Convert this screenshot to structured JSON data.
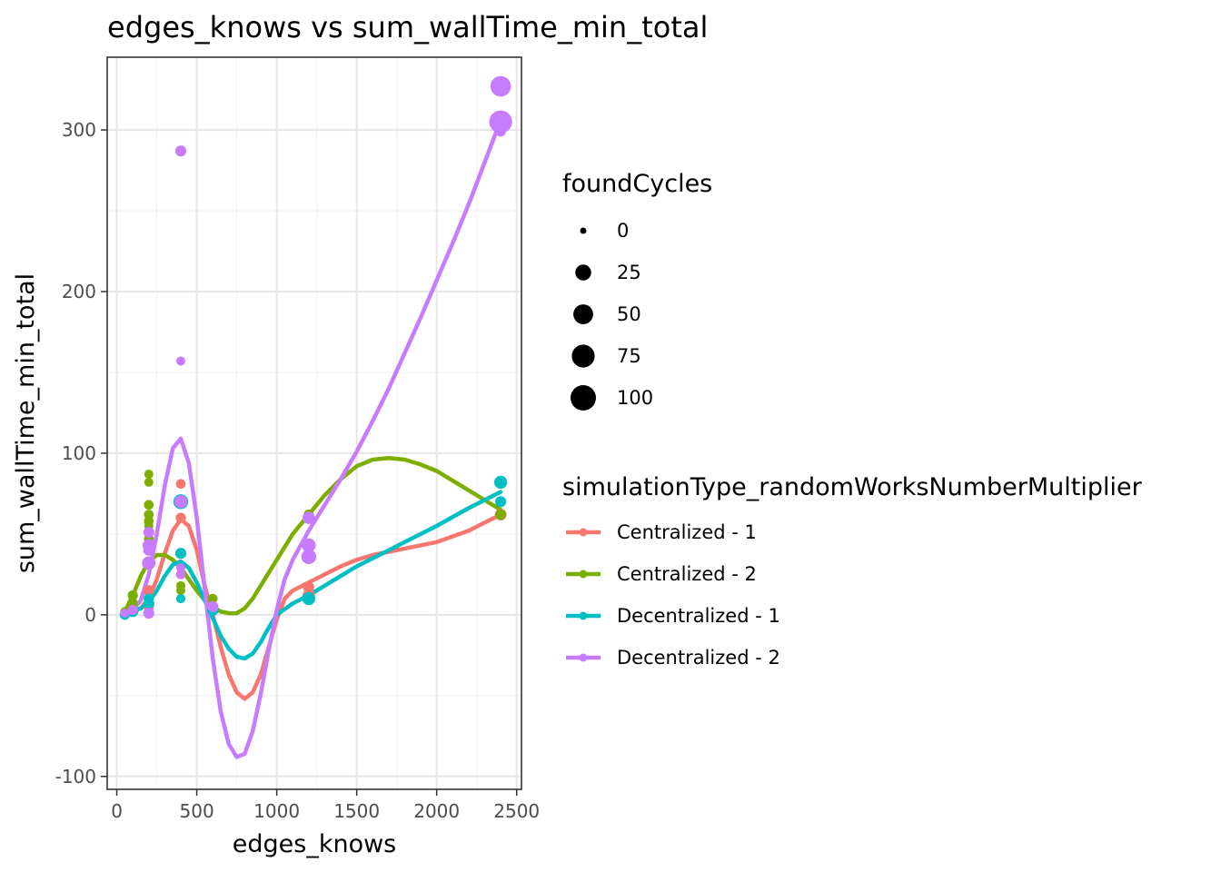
{
  "chart_data": {
    "type": "scatter",
    "title": "edges_knows  vs  sum_wallTime_min_total",
    "xlabel": "edges_knows",
    "ylabel": "sum_wallTime_min_total",
    "xlim": [
      -60,
      2530
    ],
    "ylim": [
      -108,
      345
    ],
    "x_ticks": [
      0,
      500,
      1000,
      1500,
      2000,
      2500
    ],
    "y_ticks": [
      -100,
      0,
      100,
      200,
      300
    ],
    "grid": true,
    "size_legend": {
      "title": "foundCycles",
      "breaks": [
        0,
        25,
        50,
        75,
        100
      ]
    },
    "color_legend": {
      "title": "simulationType_randomWorksNumberMultiplier",
      "placement": "right"
    },
    "series": [
      {
        "name": "Centralized - 1",
        "color": "#F8766D",
        "points": [
          {
            "x": 50,
            "y": 1,
            "size": 2
          },
          {
            "x": 100,
            "y": 2,
            "size": 3
          },
          {
            "x": 200,
            "y": 5,
            "size": 4
          },
          {
            "x": 200,
            "y": 10,
            "size": 4
          },
          {
            "x": 200,
            "y": 15,
            "size": 6
          },
          {
            "x": 400,
            "y": 25,
            "size": 3
          },
          {
            "x": 400,
            "y": 60,
            "size": 4
          },
          {
            "x": 400,
            "y": 70,
            "size": 6
          },
          {
            "x": 400,
            "y": 81,
            "size": 3
          },
          {
            "x": 600,
            "y": 5,
            "size": 6
          },
          {
            "x": 1200,
            "y": 12,
            "size": 10
          },
          {
            "x": 1200,
            "y": 17,
            "size": 6
          },
          {
            "x": 2400,
            "y": 62,
            "size": 8
          }
        ],
        "smooth": [
          [
            50,
            1
          ],
          [
            100,
            2
          ],
          [
            150,
            4
          ],
          [
            200,
            10
          ],
          [
            250,
            22
          ],
          [
            300,
            38
          ],
          [
            350,
            52
          ],
          [
            400,
            59
          ],
          [
            450,
            55
          ],
          [
            500,
            40
          ],
          [
            550,
            18
          ],
          [
            600,
            0
          ],
          [
            650,
            -20
          ],
          [
            700,
            -37
          ],
          [
            750,
            -48
          ],
          [
            800,
            -52
          ],
          [
            850,
            -48
          ],
          [
            900,
            -37
          ],
          [
            950,
            -20
          ],
          [
            1000,
            -3
          ],
          [
            1050,
            10
          ],
          [
            1100,
            15
          ],
          [
            1200,
            20
          ],
          [
            1300,
            25
          ],
          [
            1400,
            30
          ],
          [
            1500,
            34
          ],
          [
            1600,
            37
          ],
          [
            1700,
            39
          ],
          [
            1800,
            41
          ],
          [
            2000,
            45
          ],
          [
            2200,
            52
          ],
          [
            2400,
            62
          ]
        ]
      },
      {
        "name": "Centralized - 2",
        "color": "#7CAE00",
        "points": [
          {
            "x": 50,
            "y": 2,
            "size": 2
          },
          {
            "x": 100,
            "y": 12,
            "size": 4
          },
          {
            "x": 100,
            "y": 7,
            "size": 4
          },
          {
            "x": 200,
            "y": 87,
            "size": 2
          },
          {
            "x": 200,
            "y": 82,
            "size": 2
          },
          {
            "x": 200,
            "y": 68,
            "size": 3
          },
          {
            "x": 200,
            "y": 62,
            "size": 3
          },
          {
            "x": 200,
            "y": 58,
            "size": 3
          },
          {
            "x": 200,
            "y": 55,
            "size": 2
          },
          {
            "x": 200,
            "y": 47,
            "size": 3
          },
          {
            "x": 200,
            "y": 42,
            "size": 2
          },
          {
            "x": 400,
            "y": 70,
            "size": 4
          },
          {
            "x": 400,
            "y": 15,
            "size": 2
          },
          {
            "x": 400,
            "y": 18,
            "size": 2
          },
          {
            "x": 400,
            "y": 10,
            "size": 2
          },
          {
            "x": 600,
            "y": 10,
            "size": 3
          },
          {
            "x": 1200,
            "y": 62,
            "size": 4
          },
          {
            "x": 2400,
            "y": 62,
            "size": 5
          },
          {
            "x": 2400,
            "y": 70,
            "size": 3
          }
        ],
        "smooth": [
          [
            50,
            2
          ],
          [
            100,
            12
          ],
          [
            150,
            24
          ],
          [
            200,
            33
          ],
          [
            250,
            37
          ],
          [
            300,
            37
          ],
          [
            350,
            34
          ],
          [
            400,
            29
          ],
          [
            450,
            22
          ],
          [
            500,
            15
          ],
          [
            550,
            9
          ],
          [
            600,
            5
          ],
          [
            650,
            2
          ],
          [
            700,
            1
          ],
          [
            750,
            1
          ],
          [
            800,
            4
          ],
          [
            850,
            10
          ],
          [
            900,
            18
          ],
          [
            1000,
            34
          ],
          [
            1100,
            50
          ],
          [
            1200,
            62
          ],
          [
            1300,
            74
          ],
          [
            1400,
            84
          ],
          [
            1500,
            92
          ],
          [
            1600,
            96
          ],
          [
            1700,
            97
          ],
          [
            1800,
            96
          ],
          [
            1900,
            93
          ],
          [
            2000,
            89
          ],
          [
            2100,
            83
          ],
          [
            2200,
            77
          ],
          [
            2300,
            71
          ],
          [
            2400,
            65
          ]
        ]
      },
      {
        "name": "Decentralized - 1",
        "color": "#00BFC4",
        "points": [
          {
            "x": 50,
            "y": 0,
            "size": 4
          },
          {
            "x": 100,
            "y": 2,
            "size": 6
          },
          {
            "x": 200,
            "y": 7,
            "size": 6
          },
          {
            "x": 200,
            "y": 10,
            "size": 4
          },
          {
            "x": 400,
            "y": 70,
            "size": 20
          },
          {
            "x": 400,
            "y": 38,
            "size": 6
          },
          {
            "x": 400,
            "y": 10,
            "size": 2
          },
          {
            "x": 600,
            "y": 3,
            "size": 8
          },
          {
            "x": 1200,
            "y": 10,
            "size": 12
          },
          {
            "x": 2400,
            "y": 82,
            "size": 12
          },
          {
            "x": 2400,
            "y": 70,
            "size": 6
          }
        ],
        "smooth": [
          [
            50,
            0
          ],
          [
            100,
            2
          ],
          [
            150,
            4
          ],
          [
            200,
            8
          ],
          [
            250,
            15
          ],
          [
            300,
            24
          ],
          [
            350,
            31
          ],
          [
            400,
            33
          ],
          [
            450,
            29
          ],
          [
            500,
            20
          ],
          [
            550,
            9
          ],
          [
            600,
            -2
          ],
          [
            650,
            -13
          ],
          [
            700,
            -21
          ],
          [
            750,
            -26
          ],
          [
            800,
            -27
          ],
          [
            850,
            -24
          ],
          [
            900,
            -17
          ],
          [
            950,
            -8
          ],
          [
            1000,
            0
          ],
          [
            1100,
            7
          ],
          [
            1200,
            12
          ],
          [
            1300,
            18
          ],
          [
            1400,
            24
          ],
          [
            1500,
            30
          ],
          [
            1600,
            35
          ],
          [
            1700,
            40
          ],
          [
            1800,
            45
          ],
          [
            2000,
            55
          ],
          [
            2200,
            66
          ],
          [
            2400,
            76
          ]
        ]
      },
      {
        "name": "Decentralized - 2",
        "color": "#C77CFF",
        "points": [
          {
            "x": 50,
            "y": 1,
            "size": 2
          },
          {
            "x": 100,
            "y": 3,
            "size": 4
          },
          {
            "x": 200,
            "y": 51,
            "size": 6
          },
          {
            "x": 200,
            "y": 43,
            "size": 10
          },
          {
            "x": 200,
            "y": 40,
            "size": 6
          },
          {
            "x": 200,
            "y": 32,
            "size": 14
          },
          {
            "x": 200,
            "y": 1,
            "size": 6
          },
          {
            "x": 400,
            "y": 287,
            "size": 6
          },
          {
            "x": 400,
            "y": 157,
            "size": 2
          },
          {
            "x": 400,
            "y": 70,
            "size": 12
          },
          {
            "x": 400,
            "y": 29,
            "size": 2
          },
          {
            "x": 400,
            "y": 25,
            "size": 2
          },
          {
            "x": 600,
            "y": 5,
            "size": 6
          },
          {
            "x": 1200,
            "y": 60,
            "size": 10
          },
          {
            "x": 1200,
            "y": 43,
            "size": 16
          },
          {
            "x": 1200,
            "y": 36,
            "size": 20
          },
          {
            "x": 2400,
            "y": 327,
            "size": 55
          },
          {
            "x": 2400,
            "y": 305,
            "size": 75
          },
          {
            "x": 2400,
            "y": 299,
            "size": 4
          }
        ],
        "smooth": [
          [
            50,
            1
          ],
          [
            100,
            3
          ],
          [
            150,
            9
          ],
          [
            200,
            25
          ],
          [
            250,
            50
          ],
          [
            300,
            80
          ],
          [
            350,
            103
          ],
          [
            400,
            109
          ],
          [
            450,
            94
          ],
          [
            500,
            60
          ],
          [
            550,
            16
          ],
          [
            600,
            -27
          ],
          [
            650,
            -60
          ],
          [
            700,
            -80
          ],
          [
            750,
            -88
          ],
          [
            800,
            -86
          ],
          [
            850,
            -72
          ],
          [
            900,
            -49
          ],
          [
            950,
            -22
          ],
          [
            1000,
            3
          ],
          [
            1050,
            22
          ],
          [
            1100,
            34
          ],
          [
            1200,
            52
          ],
          [
            1300,
            68
          ],
          [
            1400,
            84
          ],
          [
            1500,
            101
          ],
          [
            1600,
            120
          ],
          [
            1700,
            140
          ],
          [
            1800,
            162
          ],
          [
            1900,
            184
          ],
          [
            2000,
            207
          ],
          [
            2100,
            230
          ],
          [
            2200,
            254
          ],
          [
            2300,
            280
          ],
          [
            2400,
            306
          ]
        ]
      }
    ]
  }
}
